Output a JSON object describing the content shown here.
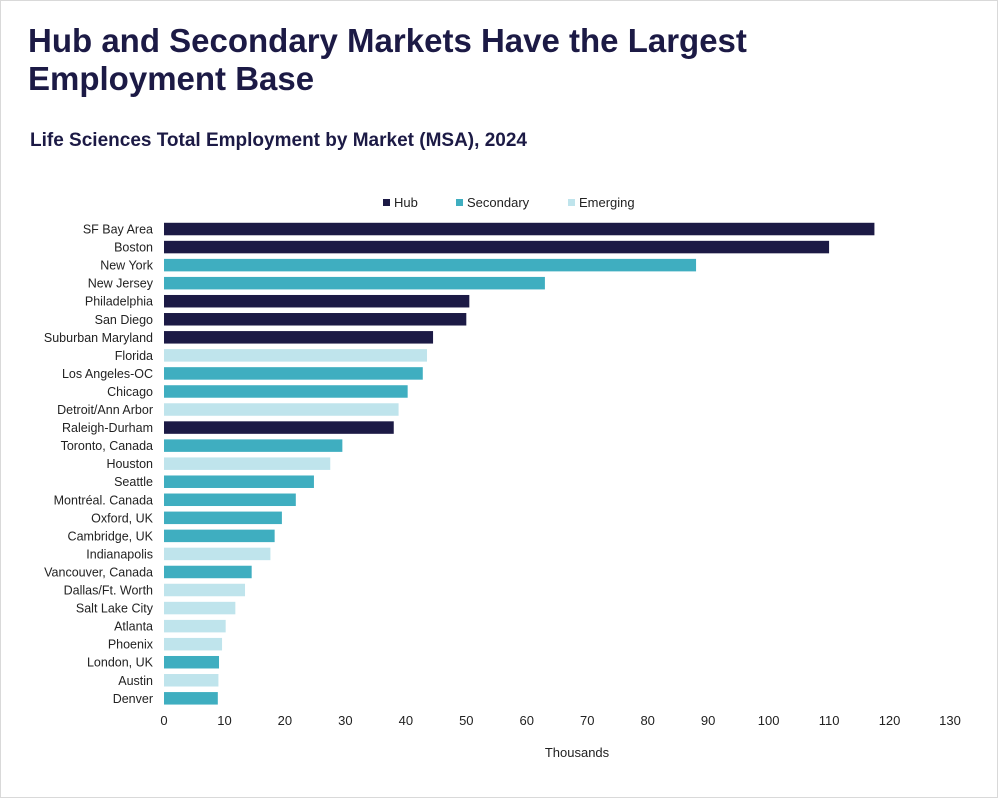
{
  "headline": "Hub and Secondary Markets Have the Largest Employment Base",
  "chart_data": {
    "type": "bar",
    "orientation": "horizontal",
    "title": "Life Sciences Total Employment by Market (MSA), 2024",
    "xlabel": "Thousands",
    "ylabel": "",
    "xlim": [
      0,
      130
    ],
    "xticks": [
      0,
      10,
      20,
      30,
      40,
      50,
      60,
      70,
      80,
      90,
      100,
      110,
      120,
      130
    ],
    "legend_position": "top-center",
    "legend": [
      {
        "name": "Hub",
        "color": "#1c1a45"
      },
      {
        "name": "Secondary",
        "color": "#3faec0"
      },
      {
        "name": "Emerging",
        "color": "#bfe4ec"
      }
    ],
    "bars": [
      {
        "label": "SF Bay Area",
        "value": 117.5,
        "group": "Hub"
      },
      {
        "label": "Boston",
        "value": 110,
        "group": "Hub"
      },
      {
        "label": "New York",
        "value": 88,
        "group": "Secondary"
      },
      {
        "label": "New Jersey",
        "value": 63,
        "group": "Secondary"
      },
      {
        "label": "Philadelphia",
        "value": 50.5,
        "group": "Hub"
      },
      {
        "label": "San Diego",
        "value": 50,
        "group": "Hub"
      },
      {
        "label": "Suburban Maryland",
        "value": 44.5,
        "group": "Hub"
      },
      {
        "label": "Florida",
        "value": 43.5,
        "group": "Emerging"
      },
      {
        "label": "Los Angeles-OC",
        "value": 42.8,
        "group": "Secondary"
      },
      {
        "label": "Chicago",
        "value": 40.3,
        "group": "Secondary"
      },
      {
        "label": "Detroit/Ann Arbor",
        "value": 38.8,
        "group": "Emerging"
      },
      {
        "label": "Raleigh-Durham",
        "value": 38,
        "group": "Hub"
      },
      {
        "label": "Toronto, Canada",
        "value": 29.5,
        "group": "Secondary"
      },
      {
        "label": "Houston",
        "value": 27.5,
        "group": "Emerging"
      },
      {
        "label": "Seattle",
        "value": 24.8,
        "group": "Secondary"
      },
      {
        "label": "Montréal. Canada",
        "value": 21.8,
        "group": "Secondary"
      },
      {
        "label": "Oxford, UK",
        "value": 19.5,
        "group": "Secondary"
      },
      {
        "label": "Cambridge, UK",
        "value": 18.3,
        "group": "Secondary"
      },
      {
        "label": "Indianapolis",
        "value": 17.6,
        "group": "Emerging"
      },
      {
        "label": "Vancouver, Canada",
        "value": 14.5,
        "group": "Secondary"
      },
      {
        "label": "Dallas/Ft. Worth",
        "value": 13.4,
        "group": "Emerging"
      },
      {
        "label": "Salt Lake City",
        "value": 11.8,
        "group": "Emerging"
      },
      {
        "label": "Atlanta",
        "value": 10.2,
        "group": "Emerging"
      },
      {
        "label": "Phoenix",
        "value": 9.6,
        "group": "Emerging"
      },
      {
        "label": "London, UK",
        "value": 9.1,
        "group": "Secondary"
      },
      {
        "label": "Austin",
        "value": 9.0,
        "group": "Emerging"
      },
      {
        "label": "Denver",
        "value": 8.9,
        "group": "Secondary"
      }
    ]
  }
}
